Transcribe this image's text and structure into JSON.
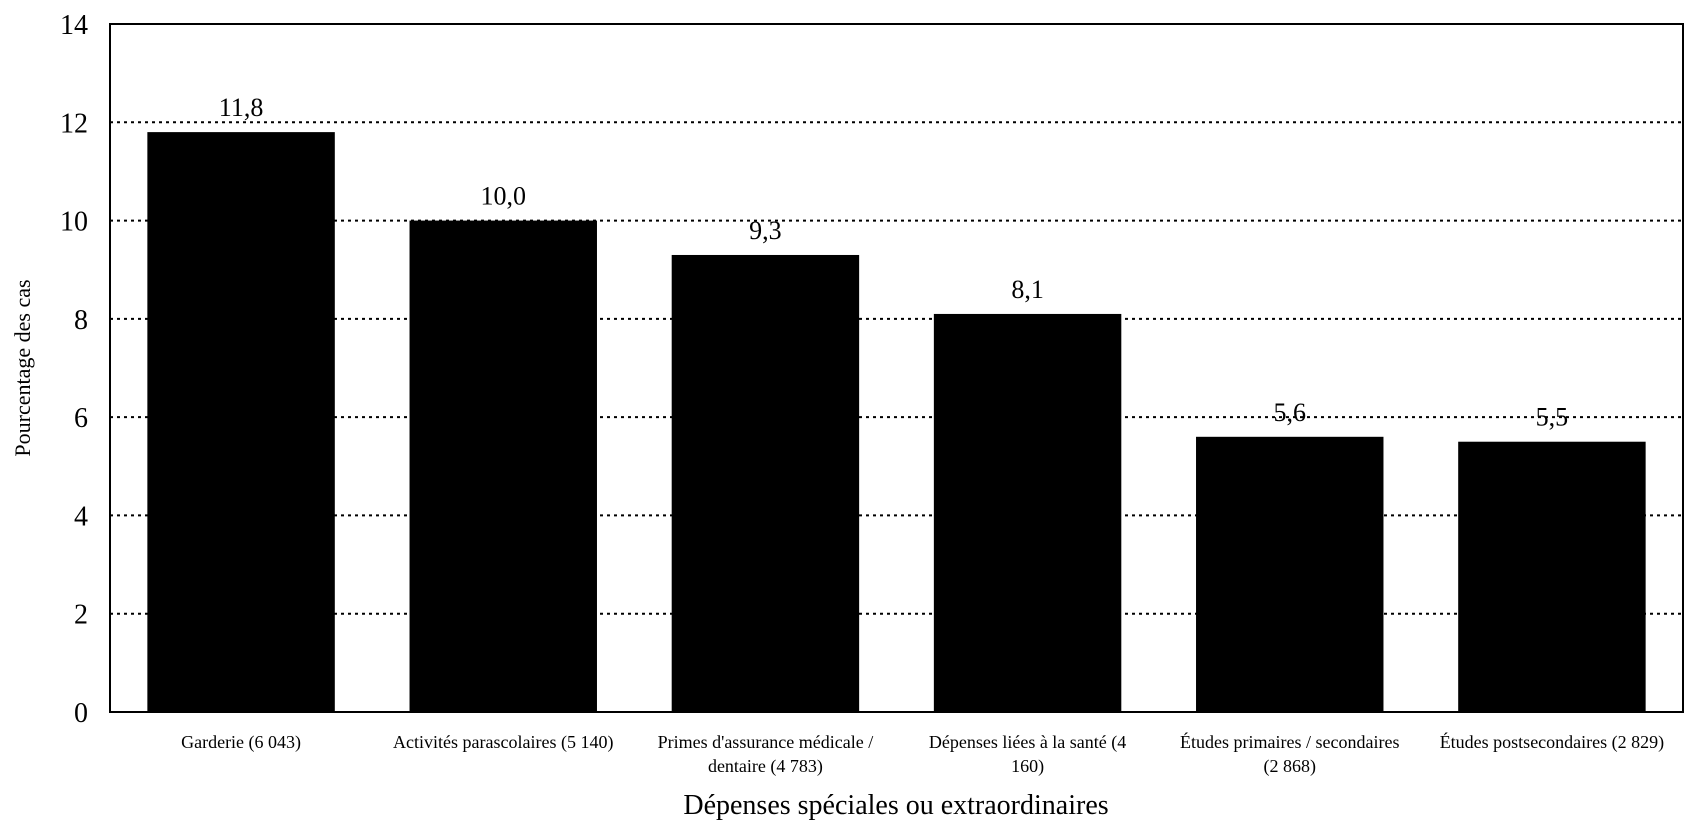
{
  "chart_data": {
    "type": "bar",
    "categories": [
      "Garderie (6 043)",
      "Activités parascolaires (5 140)",
      "Primes d'assurance médicale / dentaire (4 783)",
      "Dépenses liées à la santé (4 160)",
      "Études primaires / secondaires (2 868)",
      "Études postsecondaires (2 829)"
    ],
    "category_lines": [
      [
        "Garderie (6 043)"
      ],
      [
        "Activités parascolaires (5 140)"
      ],
      [
        "Primes d'assurance médicale /",
        "dentaire (4 783)"
      ],
      [
        "Dépenses liées à la santé (4",
        "160)"
      ],
      [
        "Études primaires / secondaires",
        "(2 868)"
      ],
      [
        "Études postsecondaires (2 829)"
      ]
    ],
    "values": [
      11.8,
      10.0,
      9.3,
      8.1,
      5.6,
      5.5
    ],
    "data_labels": [
      "11,8",
      "10,0",
      "9,3",
      "8,1",
      "5,6",
      "5,5"
    ],
    "yticks": [
      0,
      2,
      4,
      6,
      8,
      10,
      12,
      14
    ],
    "ylim": [
      0,
      14
    ],
    "title": "",
    "xlabel": "Dépenses spéciales ou extraordinaires",
    "ylabel": "Pourcentage des cas",
    "grid": true,
    "legend": "none",
    "bar_color": "#000000"
  }
}
